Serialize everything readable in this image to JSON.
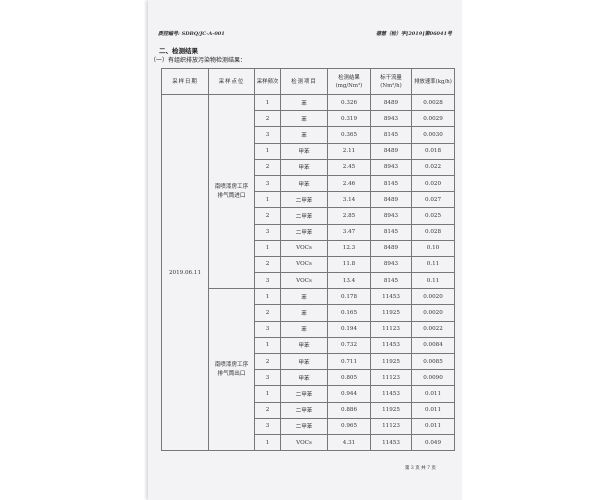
{
  "header": {
    "left": "质控编号: SDBQ/JC-A-001",
    "right": "德慧（检）字[2019]第06041号"
  },
  "section_title": "二、检测结果",
  "subsection_title": "（一）有组织排放污染物检测结果：",
  "table": {
    "columns": [
      "采样日期",
      "采样点位",
      "采样频次",
      "检测项目",
      "检测结果(mg/Nm³)",
      "标干流量(Nm³/h)",
      "排放速率(kg/h)"
    ],
    "date": "2019.06.11",
    "groups": [
      {
        "location": "南喷漆房工序排气筒进口",
        "rows": [
          [
            "1",
            "苯",
            "0.326",
            "8489",
            "0.0028"
          ],
          [
            "2",
            "苯",
            "0.319",
            "8943",
            "0.0029"
          ],
          [
            "3",
            "苯",
            "0.365",
            "8145",
            "0.0030"
          ],
          [
            "1",
            "甲苯",
            "2.11",
            "8489",
            "0.018"
          ],
          [
            "2",
            "甲苯",
            "2.45",
            "8943",
            "0.022"
          ],
          [
            "3",
            "甲苯",
            "2.46",
            "8145",
            "0.020"
          ],
          [
            "1",
            "二甲苯",
            "3.14",
            "8489",
            "0.027"
          ],
          [
            "2",
            "二甲苯",
            "2.85",
            "8943",
            "0.025"
          ],
          [
            "3",
            "二甲苯",
            "3.47",
            "8145",
            "0.028"
          ],
          [
            "1",
            "VOCs",
            "12.3",
            "8489",
            "0.10"
          ],
          [
            "2",
            "VOCs",
            "11.8",
            "8943",
            "0.11"
          ],
          [
            "3",
            "VOCs",
            "13.4",
            "8145",
            "0.11"
          ]
        ]
      },
      {
        "location": "南喷漆房工序排气筒出口",
        "rows": [
          [
            "1",
            "苯",
            "0.178",
            "11453",
            "0.0020"
          ],
          [
            "2",
            "苯",
            "0.165",
            "11925",
            "0.0020"
          ],
          [
            "3",
            "苯",
            "0.194",
            "11123",
            "0.0022"
          ],
          [
            "1",
            "甲苯",
            "0.732",
            "11453",
            "0.0084"
          ],
          [
            "2",
            "甲苯",
            "0.711",
            "11925",
            "0.0085"
          ],
          [
            "3",
            "甲苯",
            "0.805",
            "11123",
            "0.0090"
          ],
          [
            "1",
            "二甲苯",
            "0.944",
            "11453",
            "0.011"
          ],
          [
            "2",
            "二甲苯",
            "0.886",
            "11925",
            "0.011"
          ],
          [
            "3",
            "二甲苯",
            "0.965",
            "11123",
            "0.011"
          ],
          [
            "1",
            "VOCs",
            "4.31",
            "11453",
            "0.049"
          ]
        ]
      }
    ]
  },
  "footer": "第 3 页  共 7 页"
}
